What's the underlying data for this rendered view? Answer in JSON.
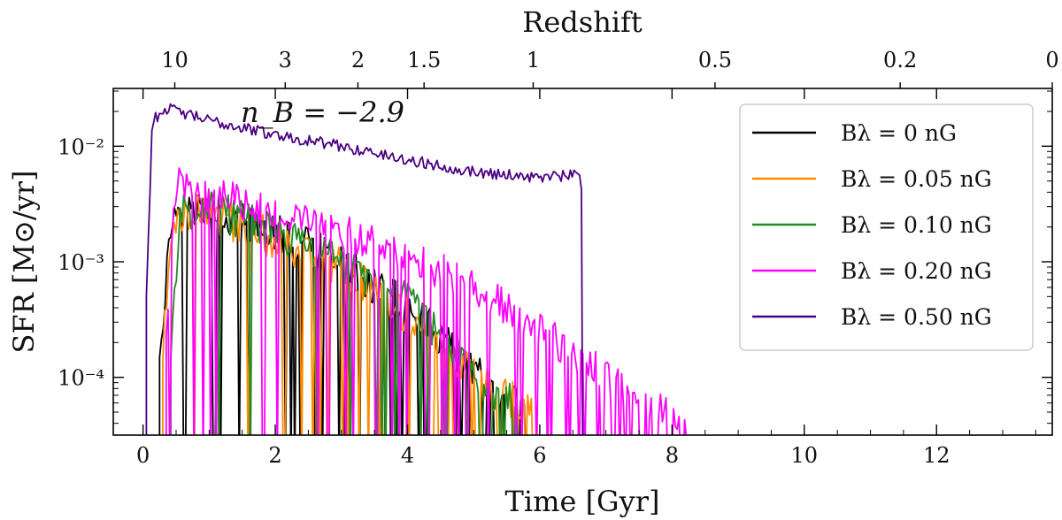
{
  "chart_data": {
    "type": "line",
    "xlabel": "Time [Gyr]",
    "ylabel": "SFR [M⊙/yr]",
    "top_xlabel": "Redshift",
    "xlim": [
      -0.45,
      13.75
    ],
    "ylim_log10": [
      -4.5,
      -1.5
    ],
    "yscale": "log",
    "x_ticks": [
      0,
      2,
      4,
      6,
      8,
      10,
      12
    ],
    "x_tick_labels": [
      "0",
      "2",
      "4",
      "6",
      "8",
      "10",
      "12"
    ],
    "y_ticks_log10": [
      -4,
      -3,
      -2
    ],
    "y_tick_labels": [
      "10⁻⁴",
      "10⁻³",
      "10⁻²"
    ],
    "redshift_ticks": [
      {
        "label": "10",
        "time": 0.48
      },
      {
        "label": "3",
        "time": 2.15
      },
      {
        "label": "2",
        "time": 3.25
      },
      {
        "label": "1.5",
        "time": 4.25
      },
      {
        "label": "1",
        "time": 5.9
      },
      {
        "label": "0.5",
        "time": 8.65
      },
      {
        "label": "0.2",
        "time": 11.45
      },
      {
        "label": "0",
        "time": 13.75
      }
    ],
    "annotation": "n_B = −2.9",
    "legend_position": "top-right",
    "series": [
      {
        "name": "B_λ = 0 nG",
        "legend": "Bλ = 0 nG",
        "color": "#000000",
        "start": 0.25,
        "end": 5.8,
        "noise": 0.17,
        "drops": 0.16,
        "profile": [
          [
            0.25,
            -3.75
          ],
          [
            0.45,
            -2.55
          ],
          [
            0.9,
            -2.55
          ],
          [
            2.0,
            -2.75
          ],
          [
            3.0,
            -3.0
          ],
          [
            4.0,
            -3.4
          ],
          [
            4.6,
            -3.7
          ],
          [
            5.2,
            -4.05
          ],
          [
            5.8,
            -4.3
          ]
        ]
      },
      {
        "name": "B_λ = 0.05 nG",
        "legend": "Bλ = 0.05 nG",
        "color": "#ff8c00",
        "start": 0.3,
        "end": 5.9,
        "noise": 0.18,
        "drops": 0.16,
        "profile": [
          [
            0.3,
            -3.8
          ],
          [
            0.45,
            -2.6
          ],
          [
            0.9,
            -2.55
          ],
          [
            2.0,
            -2.8
          ],
          [
            3.0,
            -3.05
          ],
          [
            4.0,
            -3.45
          ],
          [
            4.6,
            -3.8
          ],
          [
            5.2,
            -4.1
          ],
          [
            5.9,
            -4.3
          ]
        ]
      },
      {
        "name": "B_λ = 0.10 nG",
        "legend": "Bλ = 0.10 nG",
        "color": "#228b22",
        "start": 0.42,
        "end": 5.7,
        "noise": 0.17,
        "drops": 0.16,
        "profile": [
          [
            0.42,
            -3.8
          ],
          [
            0.55,
            -2.6
          ],
          [
            0.9,
            -2.5
          ],
          [
            2.0,
            -2.75
          ],
          [
            3.0,
            -3.0
          ],
          [
            4.0,
            -3.35
          ],
          [
            4.6,
            -3.7
          ],
          [
            5.2,
            -4.05
          ],
          [
            5.7,
            -4.3
          ]
        ]
      },
      {
        "name": "B_λ = 0.20 nG",
        "legend": "Bλ = 0.20 nG",
        "color": "#ff00ff",
        "start": 0.35,
        "end": 8.3,
        "noise": 0.16,
        "drops": 0.22,
        "profile": [
          [
            0.35,
            -3.6
          ],
          [
            0.5,
            -2.3
          ],
          [
            0.8,
            -2.38
          ],
          [
            2.0,
            -2.55
          ],
          [
            3.0,
            -2.75
          ],
          [
            4.0,
            -2.95
          ],
          [
            5.0,
            -3.2
          ],
          [
            6.0,
            -3.6
          ],
          [
            6.8,
            -3.9
          ],
          [
            7.5,
            -4.2
          ],
          [
            8.3,
            -4.4
          ]
        ]
      },
      {
        "name": "B_λ = 0.50 nG",
        "legend": "Bλ = 0.50 nG",
        "color": "#4b0082",
        "start": 0.05,
        "end": 6.65,
        "noise": 0.05,
        "drops": 0.0,
        "profile": [
          [
            0.05,
            -3.3
          ],
          [
            0.14,
            -1.78
          ],
          [
            0.35,
            -1.67
          ],
          [
            1.0,
            -1.78
          ],
          [
            2.0,
            -1.9
          ],
          [
            3.0,
            -2.0
          ],
          [
            4.0,
            -2.12
          ],
          [
            5.0,
            -2.22
          ],
          [
            6.0,
            -2.27
          ],
          [
            6.6,
            -2.25
          ],
          [
            6.65,
            -2.4
          ]
        ]
      }
    ]
  }
}
